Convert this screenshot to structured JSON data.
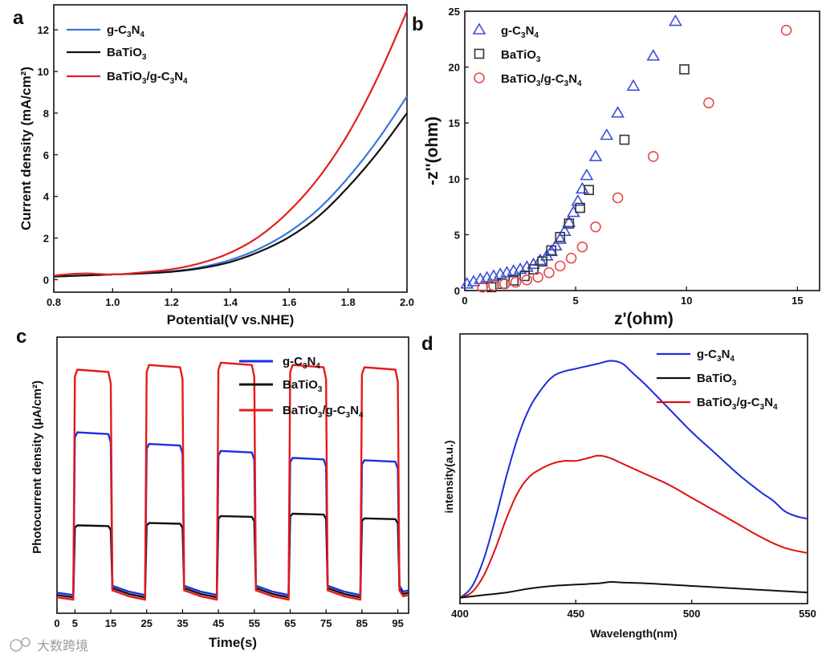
{
  "figure": {
    "watermark": "大数跨境"
  },
  "chart_data": [
    {
      "panel": "a",
      "type": "line",
      "xlabel": "Potential(V vs.NHE)",
      "ylabel": "Current density (mA/cm²)",
      "xlim": [
        0.8,
        2.0
      ],
      "ylim": [
        -0.6,
        13.2
      ],
      "xticks": [
        0.8,
        1.0,
        1.2,
        1.4,
        1.6,
        1.8,
        2.0
      ],
      "yticks": [
        0,
        2,
        4,
        6,
        8,
        10,
        12
      ],
      "legend": [
        "g-C₃N₄",
        "BaTiO₃",
        "BaTiO₃/g-C₃N₄"
      ],
      "series": [
        {
          "name": "g-C₃N₄",
          "color": "#3a78d8",
          "x": [
            0.8,
            0.9,
            1.0,
            1.1,
            1.2,
            1.3,
            1.4,
            1.5,
            1.6,
            1.7,
            1.8,
            1.9,
            2.0
          ],
          "y": [
            0.15,
            0.2,
            0.25,
            0.3,
            0.4,
            0.6,
            0.95,
            1.5,
            2.3,
            3.4,
            4.9,
            6.7,
            8.8
          ]
        },
        {
          "name": "BaTiO₃",
          "color": "#111111",
          "x": [
            0.8,
            0.9,
            1.0,
            1.1,
            1.2,
            1.3,
            1.4,
            1.5,
            1.6,
            1.7,
            1.8,
            1.9,
            2.0
          ],
          "y": [
            0.15,
            0.2,
            0.25,
            0.3,
            0.38,
            0.55,
            0.85,
            1.35,
            2.05,
            3.05,
            4.45,
            6.1,
            8.0
          ]
        },
        {
          "name": "BaTiO₃/g-C₃N₄",
          "color": "#e02020",
          "x": [
            0.8,
            0.9,
            1.0,
            1.1,
            1.2,
            1.3,
            1.4,
            1.5,
            1.6,
            1.7,
            1.8,
            1.9,
            2.0
          ],
          "y": [
            0.2,
            0.3,
            0.25,
            0.35,
            0.5,
            0.8,
            1.3,
            2.1,
            3.3,
            4.9,
            7.0,
            9.7,
            12.9
          ]
        }
      ]
    },
    {
      "panel": "b",
      "type": "scatter",
      "xlabel": "z'(ohm)",
      "ylabel": "-z''(ohm)",
      "xlim": [
        0,
        16
      ],
      "ylim": [
        0,
        25
      ],
      "xticks": [
        0,
        5,
        10,
        15
      ],
      "yticks": [
        0,
        5,
        10,
        15,
        20,
        25
      ],
      "legend": [
        "g-C₃N₄",
        "BaTiO₃",
        "BaTiO₃/g-C₃N₄"
      ],
      "series": [
        {
          "name": "g-C₃N₄",
          "marker": "triangle",
          "color": "#3a4fd8",
          "x": [
            0.1,
            0.4,
            0.7,
            1.0,
            1.3,
            1.6,
            1.9,
            2.2,
            2.5,
            2.8,
            3.1,
            3.4,
            3.7,
            3.9,
            4.1,
            4.3,
            4.5,
            4.7,
            4.9,
            5.1,
            5.3,
            5.5,
            5.9,
            6.4,
            6.9,
            7.6,
            8.5,
            9.5
          ],
          "y": [
            0.6,
            0.8,
            1.0,
            1.15,
            1.3,
            1.45,
            1.6,
            1.75,
            1.9,
            2.1,
            2.35,
            2.7,
            3.1,
            3.5,
            4.0,
            4.6,
            5.3,
            6.1,
            7.0,
            8.0,
            9.1,
            10.3,
            12.0,
            13.9,
            15.9,
            18.3,
            21.0,
            24.1
          ]
        },
        {
          "name": "BaTiO₃",
          "marker": "square",
          "color": "#333333",
          "x": [
            1.2,
            1.7,
            2.2,
            2.7,
            3.1,
            3.5,
            3.9,
            4.3,
            4.7,
            5.2,
            5.6,
            7.2,
            9.9
          ],
          "y": [
            0.3,
            0.6,
            0.9,
            1.3,
            1.9,
            2.6,
            3.6,
            4.8,
            6.0,
            7.4,
            9.0,
            13.5,
            19.8
          ]
        },
        {
          "name": "BaTiO₃/g-C₃N₄",
          "marker": "circle",
          "color": "#e84a4a",
          "x": [
            0.8,
            1.3,
            1.8,
            2.3,
            2.8,
            3.3,
            3.8,
            4.3,
            4.8,
            5.3,
            5.9,
            6.9,
            8.5,
            11.0,
            14.5
          ],
          "y": [
            0.3,
            0.45,
            0.6,
            0.75,
            0.95,
            1.2,
            1.6,
            2.2,
            2.9,
            3.9,
            5.7,
            8.3,
            12.0,
            16.8,
            23.3
          ]
        }
      ]
    },
    {
      "panel": "c",
      "type": "line",
      "xlabel": "Time(s)",
      "ylabel": "Photocurrent density (μA/cm²)",
      "xlim": [
        0,
        98
      ],
      "ylim": [
        0,
        1.05
      ],
      "xticks": [
        0,
        5,
        15,
        25,
        35,
        45,
        55,
        65,
        75,
        85,
        95
      ],
      "legend": [
        "g-C₃N₄",
        "BaTiO₃",
        "BaTiO₃/g-C₃N₄"
      ],
      "on_intervals": [
        [
          5,
          15
        ],
        [
          25,
          35
        ],
        [
          45,
          55
        ],
        [
          65,
          75
        ],
        [
          85,
          95
        ]
      ],
      "series": [
        {
          "name": "g-C₃N₄",
          "color": "#1a30e0",
          "on_values": [
            0.73,
            0.68,
            0.65,
            0.62,
            0.61
          ],
          "off_value": 0.03
        },
        {
          "name": "BaTiO₃",
          "color": "#111111",
          "on_values": [
            0.33,
            0.34,
            0.37,
            0.38,
            0.36
          ],
          "off_value": 0.02
        },
        {
          "name": "BaTiO₃/g-C₃N₄",
          "color": "#e81818",
          "on_values": [
            1.0,
            1.02,
            1.03,
            1.02,
            1.01
          ],
          "off_value": 0.01
        }
      ]
    },
    {
      "panel": "d",
      "type": "line",
      "xlabel": "Wavelength(nm)",
      "ylabel": "intensity(a.u.)",
      "xlim": [
        400,
        550
      ],
      "ylim": [
        0,
        1.0
      ],
      "xticks": [
        400,
        450,
        500,
        550
      ],
      "legend": [
        "g-C₃N₄",
        "BaTiO₃",
        "BaTiO₃/g-C₃N₄"
      ],
      "series": [
        {
          "name": "g-C₃N₄",
          "color": "#1a2ed8",
          "x": [
            400,
            405,
            410,
            415,
            420,
            425,
            430,
            435,
            440,
            445,
            450,
            455,
            460,
            465,
            470,
            475,
            480,
            490,
            500,
            510,
            520,
            530,
            535,
            540,
            545,
            550
          ],
          "y": [
            0.01,
            0.05,
            0.15,
            0.3,
            0.47,
            0.62,
            0.73,
            0.8,
            0.85,
            0.87,
            0.88,
            0.89,
            0.9,
            0.91,
            0.9,
            0.86,
            0.82,
            0.73,
            0.64,
            0.56,
            0.48,
            0.41,
            0.38,
            0.34,
            0.32,
            0.31
          ]
        },
        {
          "name": "BaTiO₃/g-C₃N₄",
          "color": "#e01010",
          "x": [
            400,
            405,
            410,
            415,
            420,
            425,
            430,
            435,
            440,
            445,
            450,
            455,
            460,
            465,
            470,
            475,
            480,
            490,
            500,
            510,
            520,
            530,
            540,
            550
          ],
          "y": [
            0.01,
            0.03,
            0.09,
            0.19,
            0.31,
            0.41,
            0.47,
            0.5,
            0.52,
            0.53,
            0.53,
            0.54,
            0.55,
            0.54,
            0.52,
            0.5,
            0.48,
            0.44,
            0.39,
            0.34,
            0.29,
            0.24,
            0.2,
            0.18
          ]
        },
        {
          "name": "BaTiO₃",
          "color": "#111111",
          "x": [
            400,
            410,
            420,
            430,
            440,
            450,
            460,
            465,
            470,
            480,
            490,
            500,
            510,
            520,
            530,
            540,
            550
          ],
          "y": [
            0.01,
            0.02,
            0.03,
            0.045,
            0.055,
            0.06,
            0.065,
            0.07,
            0.068,
            0.065,
            0.06,
            0.055,
            0.05,
            0.045,
            0.04,
            0.035,
            0.03
          ]
        }
      ]
    }
  ]
}
